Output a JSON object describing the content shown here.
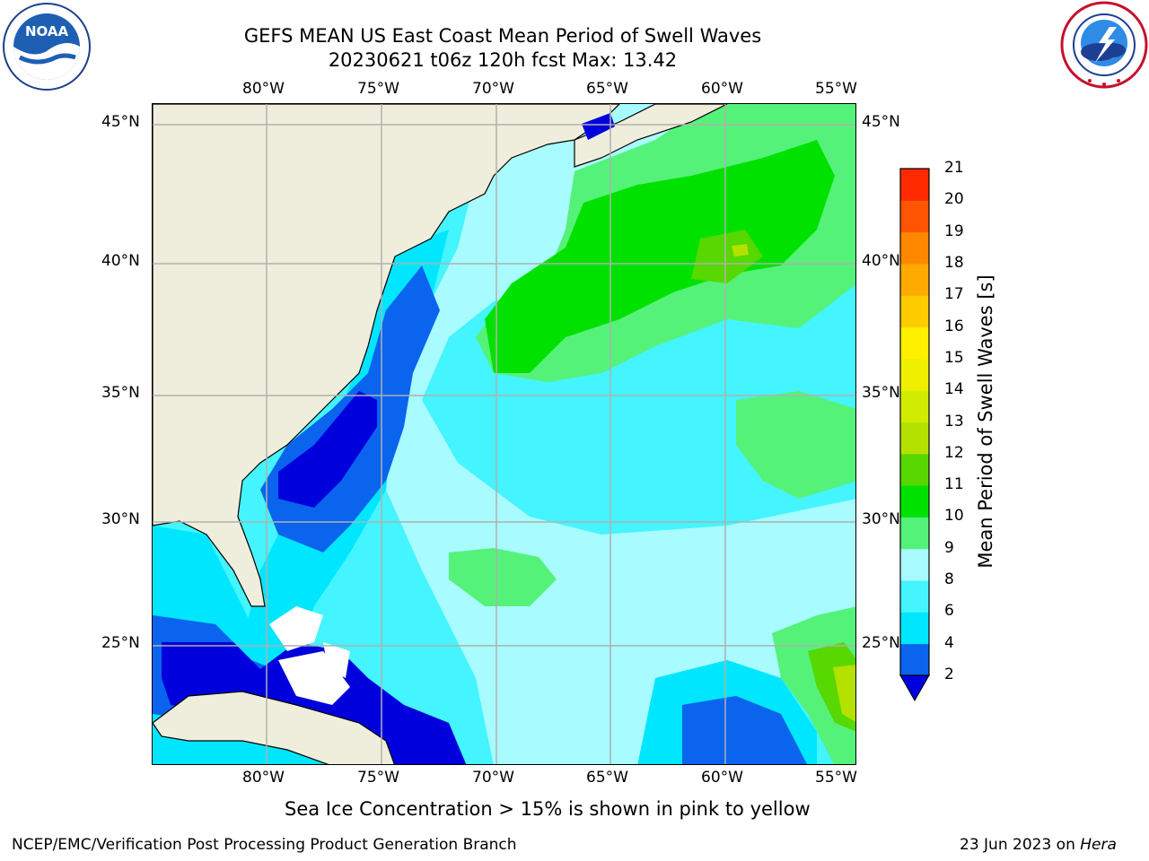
{
  "title": {
    "line1": "GEFS MEAN US East Coast Mean Period of Swell Waves",
    "line2": "20230621 t06z 120h fcst   Max: 13.42"
  },
  "logos": {
    "left": {
      "name": "noaa-logo",
      "text": "NOAA",
      "ring_text": "NATIONAL OCEANIC AND ATMOSPHERIC ADMINISTRATION · U.S. DEPARTMENT OF COMMERCE"
    },
    "right": {
      "name": "nws-logo",
      "ring_text": "NATIONAL WEATHER SERVICE"
    }
  },
  "map": {
    "lon_labels": [
      "80°W",
      "75°W",
      "70°W",
      "65°W",
      "60°W",
      "55°W"
    ],
    "lat_labels": [
      "45°N",
      "40°N",
      "35°N",
      "30°N",
      "25°N"
    ],
    "land_color": "#efeedc",
    "grid_color": "#b0b0b0",
    "colors": {
      "below_2": "#0000dd",
      "2_4": "#0a64ee",
      "4_6": "#00e6ff",
      "6_8": "#44f4ff",
      "8_9": "#a8fbff",
      "9_10": "#55f27a",
      "10_11": "#00e100",
      "11_12": "#56d800",
      "12_13": "#b4e100",
      "ice_mask": "#ffffff"
    }
  },
  "colorbar": {
    "label": "Mean Period of Swell Waves [s]",
    "ticks": [
      "2",
      "4",
      "6",
      "8",
      "9",
      "10",
      "11",
      "12",
      "13",
      "14",
      "15",
      "16",
      "17",
      "18",
      "19",
      "20",
      "21"
    ],
    "colors": [
      "#0a64ee",
      "#00e6ff",
      "#44f4ff",
      "#a8fbff",
      "#55f27a",
      "#00e100",
      "#56d800",
      "#b4e100",
      "#d2ec00",
      "#eef000",
      "#fff000",
      "#ffcc00",
      "#ffaa00",
      "#ff8800",
      "#ff5500",
      "#ff2a00",
      "#ff0000"
    ],
    "under_color": "#0000dd"
  },
  "note": "Sea Ice Concentration > 15% is shown in pink to yellow",
  "footer": {
    "left": "NCEP/EMC/Verification Post Processing Product Generation Branch",
    "right_date": "23 Jun 2023 on ",
    "right_host": "Hera"
  }
}
